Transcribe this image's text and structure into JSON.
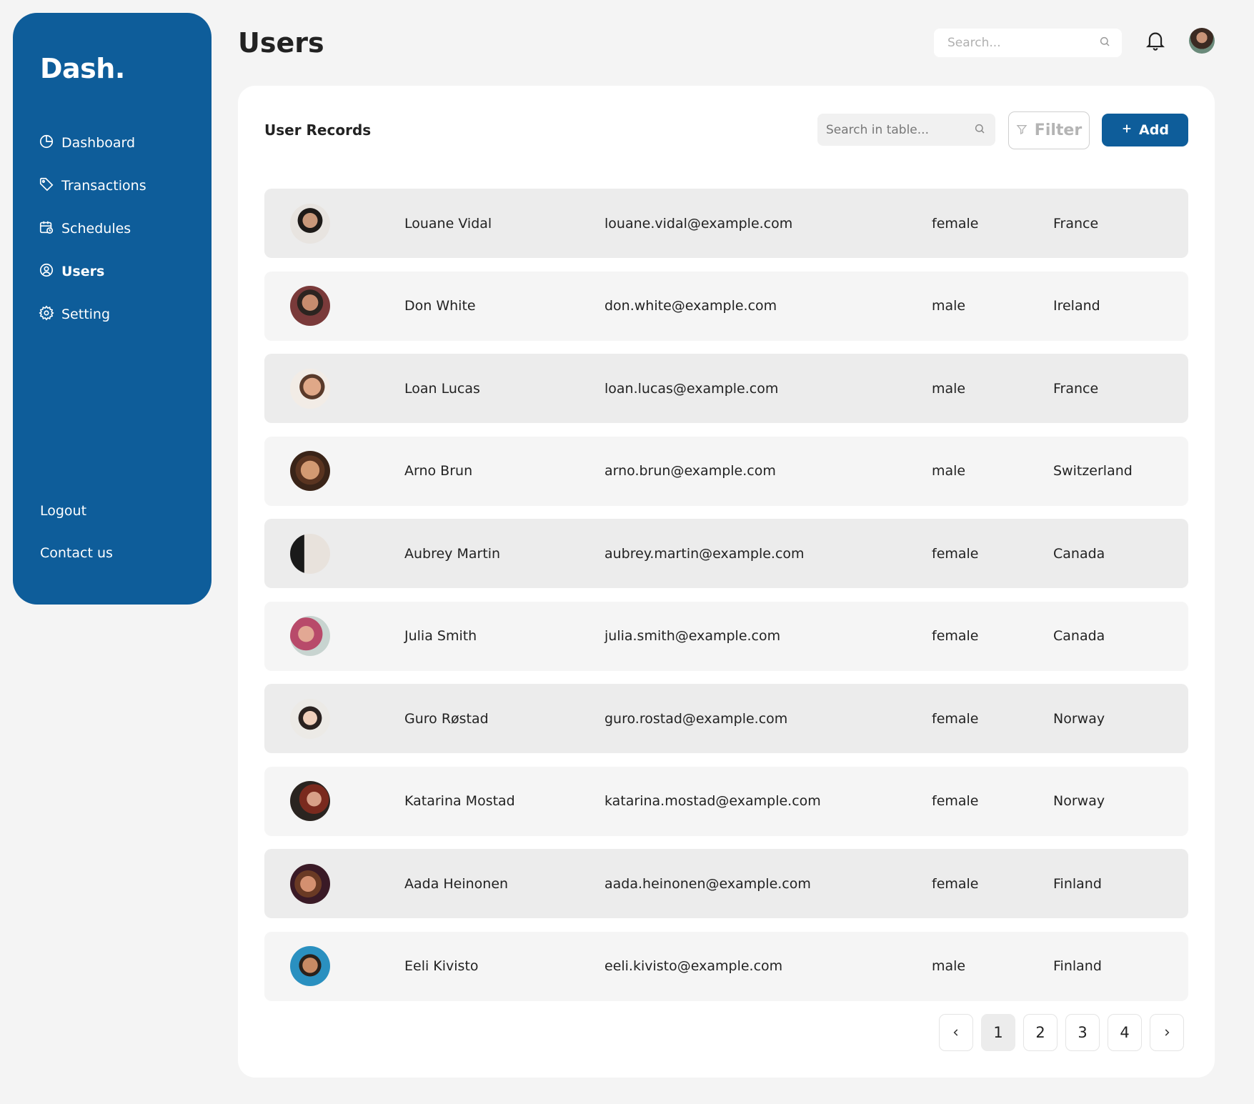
{
  "brand": "Dash.",
  "page_title": "Users",
  "search": {
    "placeholder": "Search..."
  },
  "sidebar": {
    "items": [
      {
        "label": "Dashboard",
        "icon": "pie-chart-icon"
      },
      {
        "label": "Transactions",
        "icon": "tag-icon"
      },
      {
        "label": "Schedules",
        "icon": "calendar-clock-icon"
      },
      {
        "label": "Users",
        "icon": "user-circle-icon",
        "active": true
      },
      {
        "label": "Setting",
        "icon": "gear-icon"
      }
    ],
    "logout": "Logout",
    "contact": "Contact us"
  },
  "card": {
    "title": "User Records",
    "table_search_placeholder": "Search in table...",
    "filter_label": "Filter",
    "add_label": "Add"
  },
  "users": [
    {
      "name": "Louane Vidal",
      "email": "louane.vidal@example.com",
      "gender": "female",
      "country": "France"
    },
    {
      "name": "Don White",
      "email": "don.white@example.com",
      "gender": "male",
      "country": "Ireland"
    },
    {
      "name": "Loan Lucas",
      "email": "loan.lucas@example.com",
      "gender": "male",
      "country": "France"
    },
    {
      "name": "Arno Brun",
      "email": "arno.brun@example.com",
      "gender": "male",
      "country": "Switzerland"
    },
    {
      "name": "Aubrey Martin",
      "email": "aubrey.martin@example.com",
      "gender": "female",
      "country": "Canada"
    },
    {
      "name": "Julia Smith",
      "email": "julia.smith@example.com",
      "gender": "female",
      "country": "Canada"
    },
    {
      "name": "Guro Røstad",
      "email": "guro.rostad@example.com",
      "gender": "female",
      "country": "Norway"
    },
    {
      "name": "Katarina Mostad",
      "email": "katarina.mostad@example.com",
      "gender": "female",
      "country": "Norway"
    },
    {
      "name": "Aada Heinonen",
      "email": "aada.heinonen@example.com",
      "gender": "female",
      "country": "Finland"
    },
    {
      "name": "Eeli Kivisto",
      "email": "eeli.kivisto@example.com",
      "gender": "male",
      "country": "Finland"
    }
  ],
  "pagination": {
    "pages": [
      "1",
      "2",
      "3",
      "4"
    ],
    "current": "1"
  },
  "colors": {
    "primary": "#0e5d9a",
    "background": "#f4f4f4",
    "row_odd": "#ececec",
    "row_even": "#f5f5f5"
  }
}
